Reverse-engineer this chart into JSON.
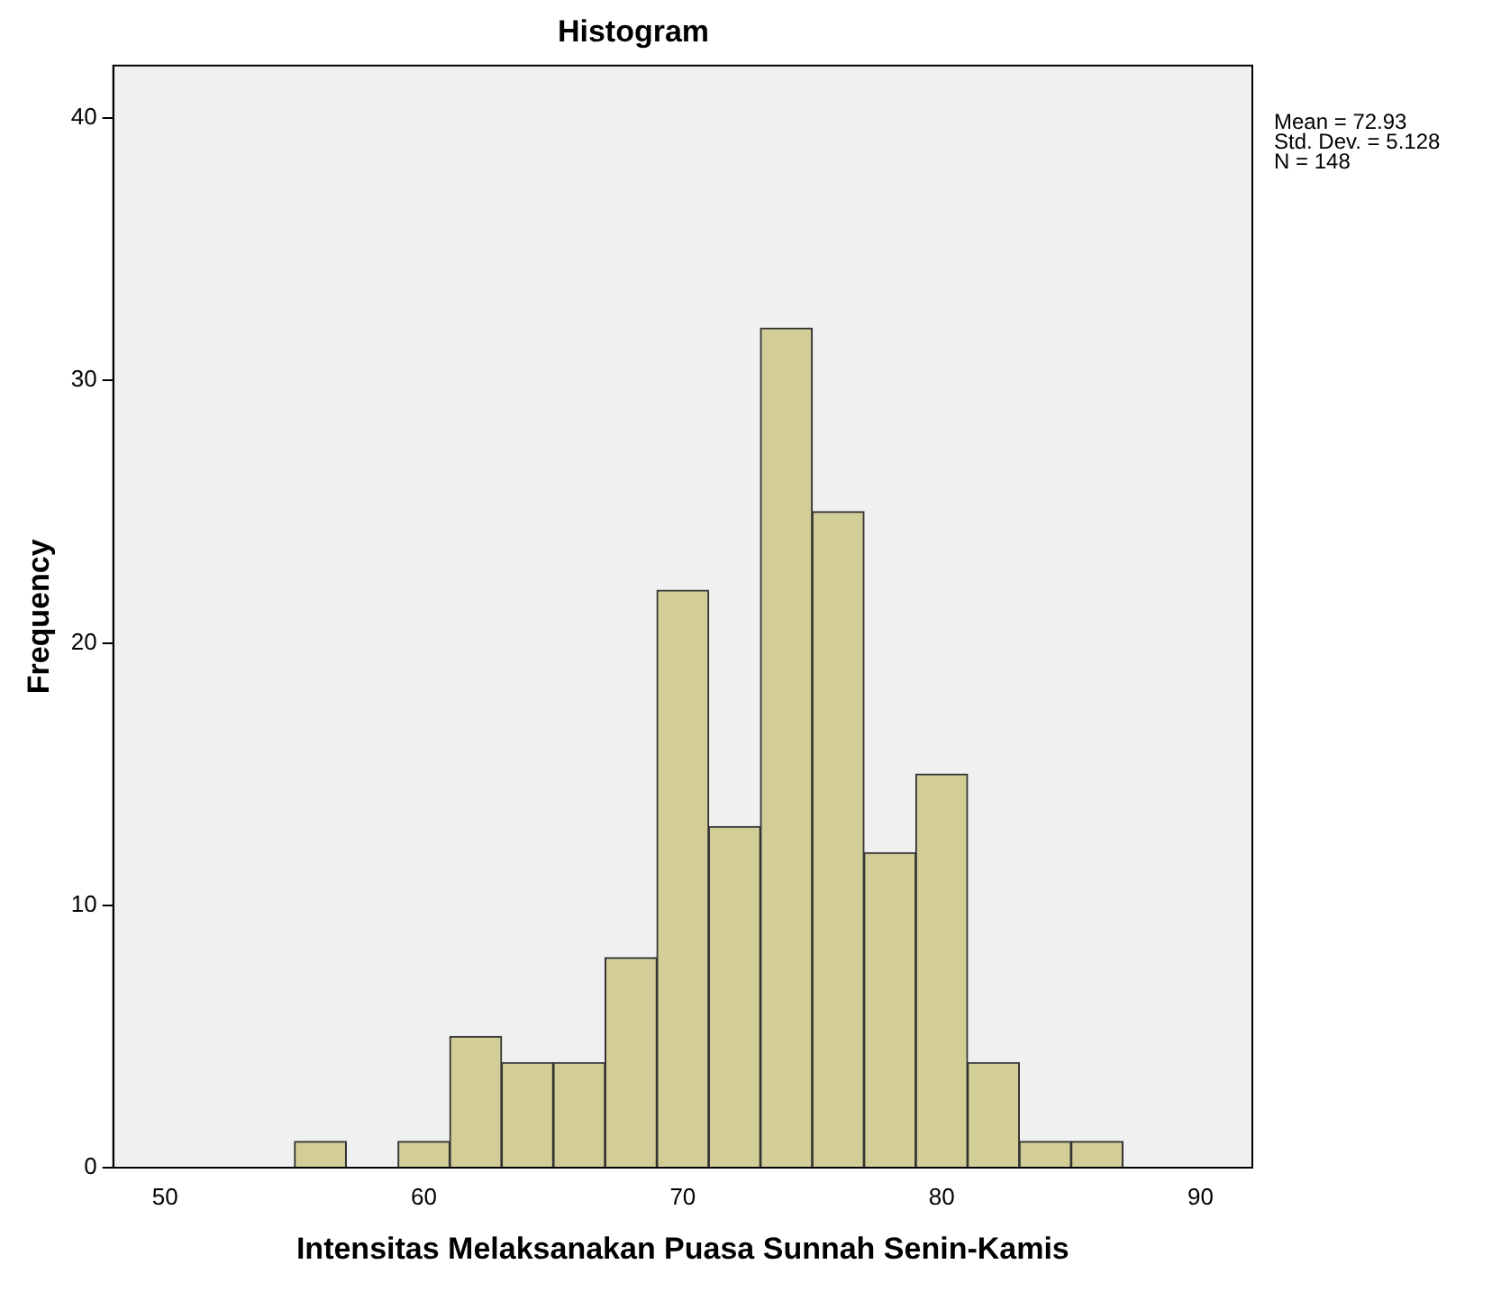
{
  "chart_data": {
    "type": "histogram",
    "title": "Histogram",
    "xlabel": "Intensitas Melaksanakan Puasa Sunnah Senin-Kamis",
    "ylabel": "Frequency",
    "bins": [
      55,
      57,
      59,
      61,
      63,
      65,
      67,
      69,
      71,
      73,
      75,
      77,
      79,
      81,
      83,
      85,
      87
    ],
    "values": [
      1,
      0,
      1,
      5,
      4,
      4,
      8,
      22,
      13,
      32,
      25,
      12,
      15,
      4,
      1,
      1
    ],
    "color": "#d3ce97",
    "xlim": [
      48,
      92
    ],
    "xticks": [
      50,
      60,
      70,
      80,
      90
    ],
    "ylim": [
      0,
      42
    ],
    "yticks": [
      0,
      10,
      20,
      30,
      40
    ],
    "grid": false,
    "annotations": [
      "Mean = 72.93",
      "Std. Dev. = 5.128",
      "N = 148"
    ]
  }
}
